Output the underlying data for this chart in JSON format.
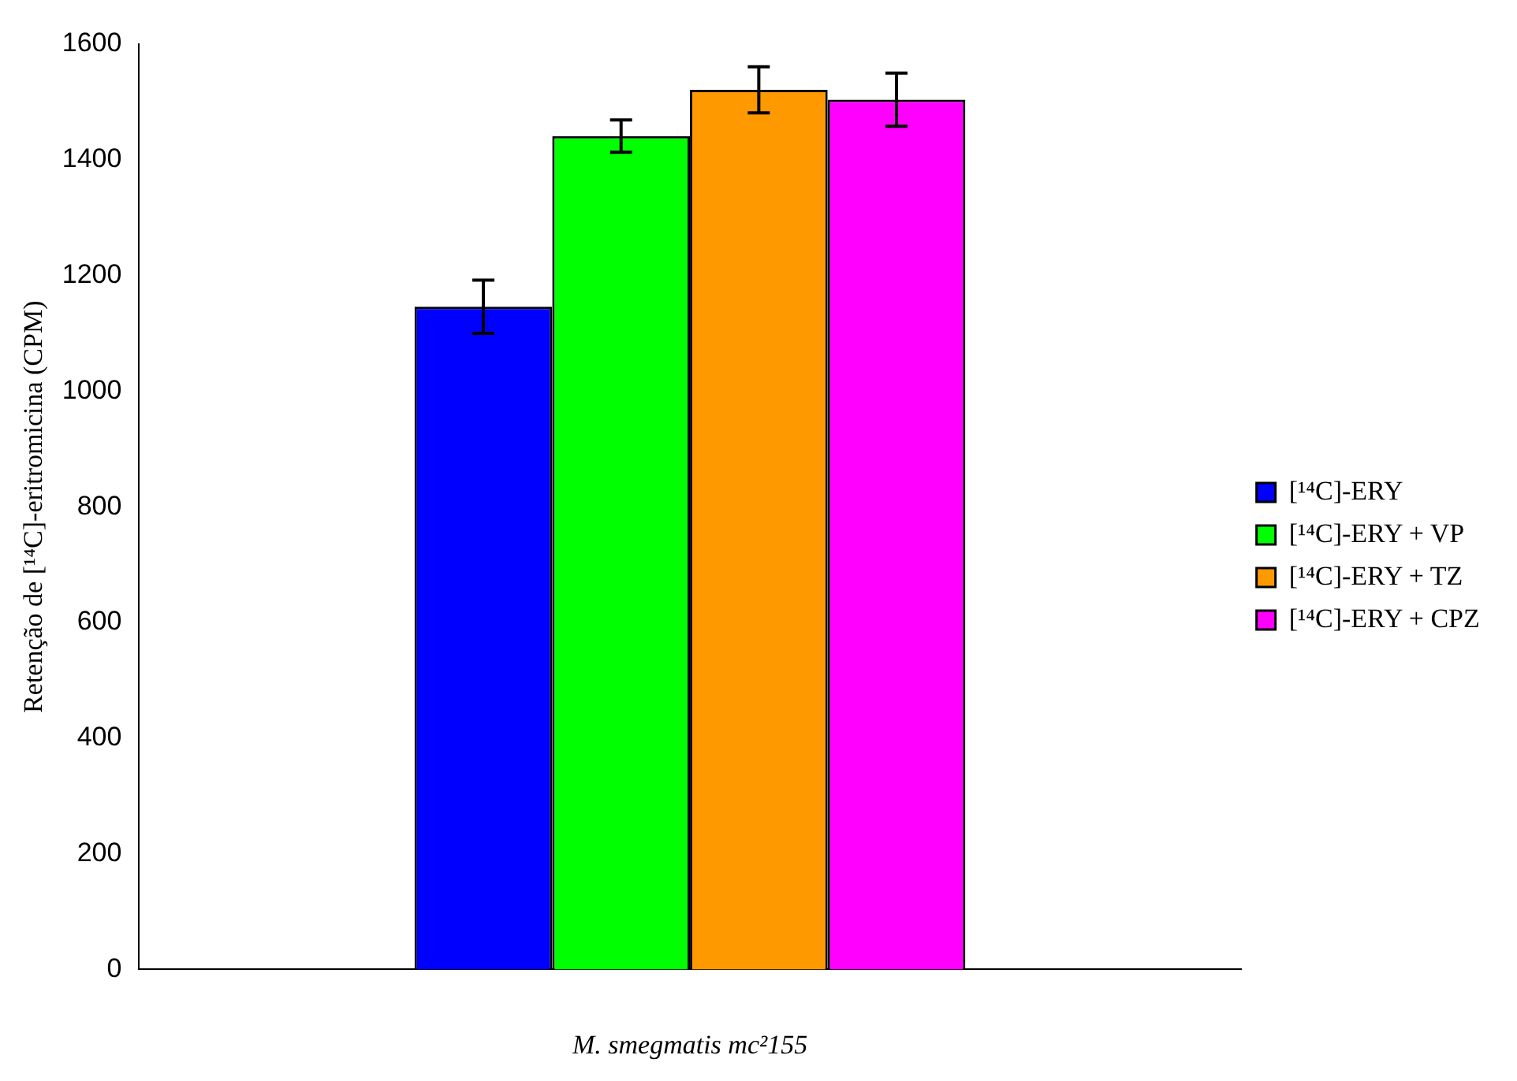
{
  "chart_data": {
    "type": "bar",
    "xlabel": "M. smegmatis mc²155",
    "ylabel": "Retenção de [¹⁴C]-eritromicina (CPM)",
    "categories": [
      null
    ],
    "series": [
      {
        "name": "[¹⁴C]-ERY",
        "color": "#0000ff",
        "values": [
          1146
        ],
        "errors": [
          46
        ]
      },
      {
        "name": "[¹⁴C]-ERY + VP",
        "color": "#00ff00",
        "values": [
          1441
        ],
        "errors": [
          28
        ]
      },
      {
        "name": "[¹⁴C]-ERY + TZ",
        "color": "#ff9900",
        "values": [
          1521
        ],
        "errors": [
          40
        ]
      },
      {
        "name": "[¹⁴C]-ERY + CPZ",
        "color": "#ff00ff",
        "values": [
          1504
        ],
        "errors": [
          46
        ]
      }
    ],
    "ylim": [
      0,
      1600
    ],
    "yticks": [
      0,
      200,
      400,
      600,
      800,
      1000,
      1200,
      1400,
      1600
    ],
    "grid": false,
    "legend": "right"
  }
}
